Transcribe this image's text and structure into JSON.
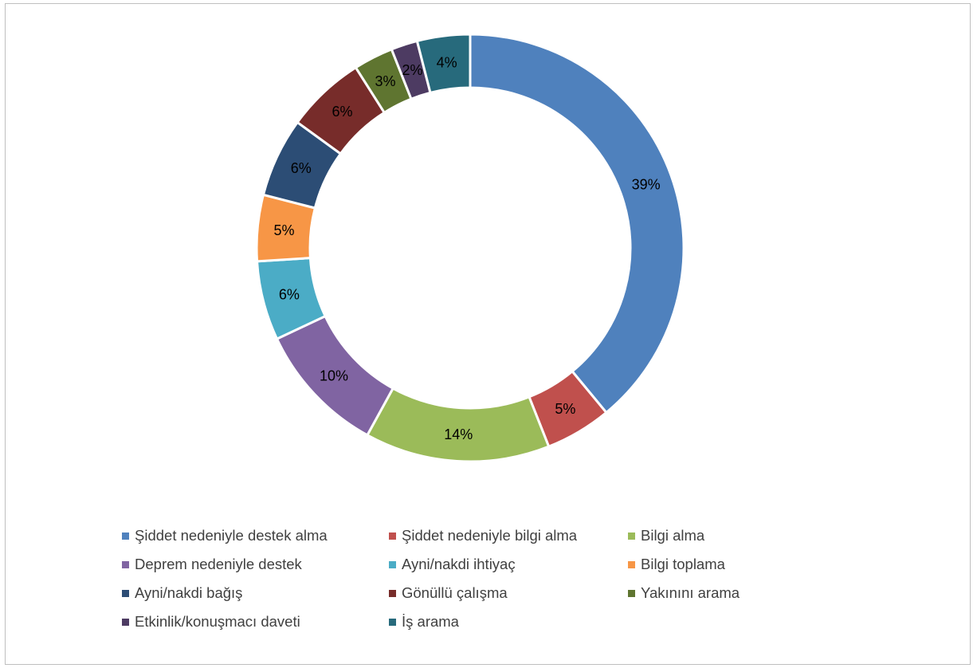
{
  "chart_data": {
    "type": "pie",
    "variant": "donut",
    "title": "",
    "legend_position": "bottom",
    "categories": [
      "Şiddet nedeniyle destek alma",
      "Şiddet nedeniyle bilgi alma",
      "Bilgi alma",
      "Deprem nedeniyle destek",
      "Ayni/nakdi ihtiyaç",
      "Bilgi toplama",
      "Ayni/nakdi bağış",
      "Gönüllü çalışma",
      "Yakınını arama",
      "Etkinlik/konuşmacı daveti",
      "İş arama"
    ],
    "values": [
      39,
      5,
      14,
      10,
      6,
      5,
      6,
      6,
      3,
      2,
      4
    ],
    "value_labels": [
      "39%",
      "5%",
      "14%",
      "10%",
      "6%",
      "5%",
      "6%",
      "6%",
      "3%",
      "2%",
      "4%"
    ],
    "colors": [
      "#4f81bd",
      "#c0504d",
      "#9bbb59",
      "#8064a2",
      "#4bacc6",
      "#f79646",
      "#2c4d75",
      "#772c2a",
      "#5f7530",
      "#4d3b62",
      "#276a7c"
    ]
  }
}
